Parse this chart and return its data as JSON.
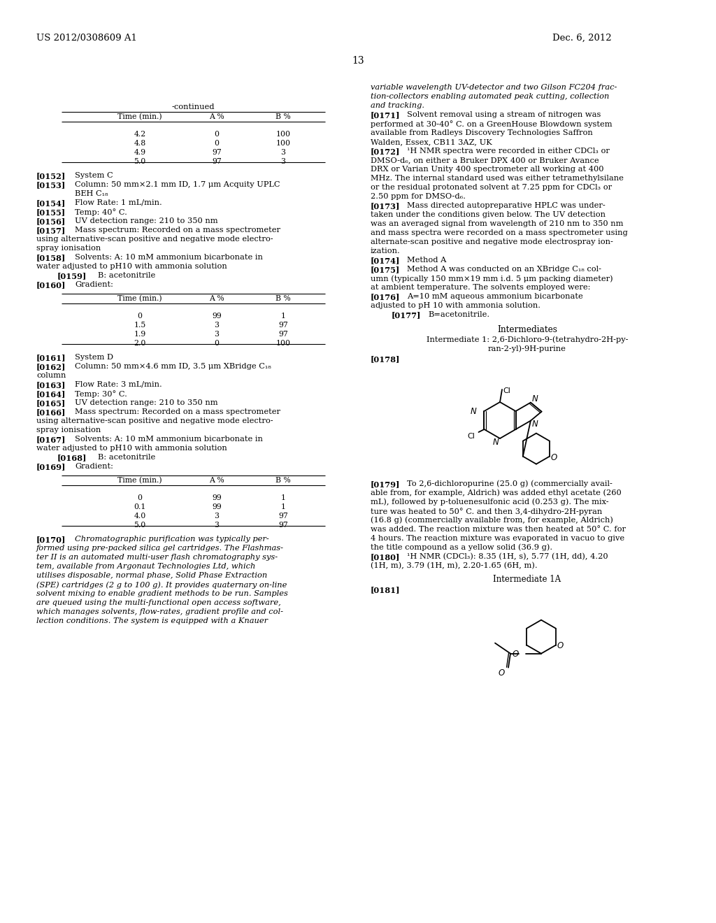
{
  "page_number": "13",
  "patent_number": "US 2012/0308609 A1",
  "patent_date": "Dec. 6, 2012",
  "background_color": "#ffffff",
  "table1_rows": [
    [
      "4.2",
      "0",
      "100"
    ],
    [
      "4.8",
      "0",
      "100"
    ],
    [
      "4.9",
      "97",
      "3"
    ],
    [
      "5.0",
      "97",
      "3"
    ]
  ],
  "table2_rows": [
    [
      "0",
      "99",
      "1"
    ],
    [
      "1.5",
      "3",
      "97"
    ],
    [
      "1.9",
      "3",
      "97"
    ],
    [
      "2.0",
      "0",
      "100"
    ]
  ],
  "table3_rows": [
    [
      "0",
      "99",
      "1"
    ],
    [
      "0.1",
      "99",
      "1"
    ],
    [
      "4.0",
      "3",
      "97"
    ],
    [
      "5.0",
      "3",
      "97"
    ]
  ]
}
